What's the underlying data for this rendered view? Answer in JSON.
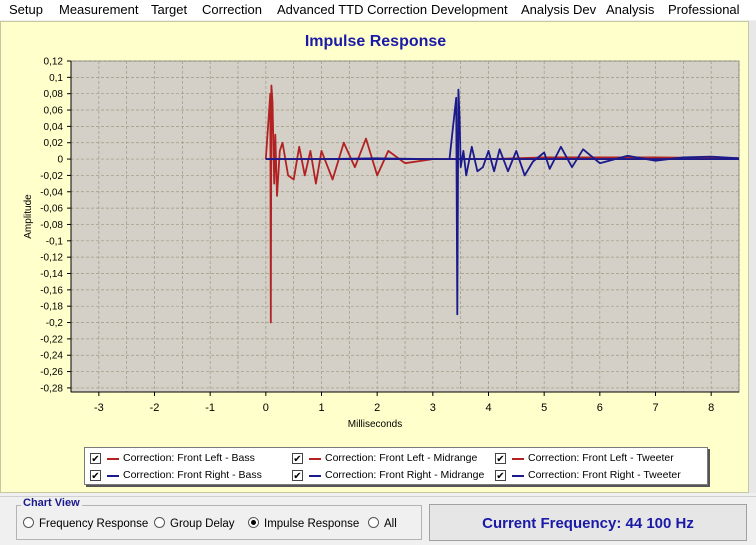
{
  "menu": [
    "Setup",
    "Measurement",
    "Target",
    "Correction",
    "Advanced TTD Correction",
    "Development",
    "Analysis Dev",
    "Analysis",
    "Professional"
  ],
  "chart_data": {
    "type": "line",
    "title": "Impulse Response",
    "xlabel": "Milliseconds",
    "ylabel": "Amplitude",
    "xlim": [
      -3.5,
      8.5
    ],
    "ylim": [
      -0.285,
      0.12
    ],
    "x_ticks": [
      -3,
      -2,
      -1,
      0,
      1,
      2,
      3,
      4,
      5,
      6,
      7,
      8
    ],
    "y_ticks": [
      "0,12",
      "0,1",
      "0,08",
      "0,06",
      "0,04",
      "0,02",
      "0",
      "-0,02",
      "-0,04",
      "-0,06",
      "-0,08",
      "-0,1",
      "-0,12",
      "-0,14",
      "-0,16",
      "-0,18",
      "-0,2",
      "-0,22",
      "-0,24",
      "-0,26",
      "-0,28"
    ],
    "y_tick_values": [
      0.12,
      0.1,
      0.08,
      0.06,
      0.04,
      0.02,
      0,
      -0.02,
      -0.04,
      -0.06,
      -0.08,
      -0.1,
      -0.12,
      -0.14,
      -0.16,
      -0.18,
      -0.2,
      -0.22,
      -0.24,
      -0.26,
      -0.28
    ],
    "grid": true,
    "series": [
      {
        "name": "Correction: Front Left - Bass",
        "color": "#b22222",
        "x": [
          0.0,
          0.08,
          0.09,
          0.1,
          0.12,
          0.15,
          0.17,
          0.2,
          0.25,
          0.3,
          0.4,
          0.5,
          0.6,
          0.7,
          0.8,
          0.9,
          1.0,
          1.2,
          1.4,
          1.6,
          1.8,
          2.0,
          2.2,
          2.5,
          3.0,
          3.5,
          4.0,
          6.0,
          8.5
        ],
        "y": [
          0.0,
          0.08,
          -0.2,
          0.09,
          0.07,
          -0.03,
          0.03,
          -0.045,
          0.01,
          0.02,
          -0.02,
          -0.025,
          0.015,
          -0.02,
          0.01,
          -0.03,
          0.01,
          -0.025,
          0.02,
          -0.01,
          0.025,
          -0.02,
          0.01,
          -0.005,
          0.0,
          0.0,
          0.0,
          0.002,
          0.001
        ]
      },
      {
        "name": "Correction: Front Left - Midrange",
        "color": "#b22222",
        "x": [
          0.0,
          0.5,
          1.0,
          2.0,
          3.0,
          3.45,
          4.0,
          5.0,
          6.0,
          7.0,
          8.5
        ],
        "y": [
          0.0,
          0.0,
          0.0,
          0.0,
          0.0,
          0.0,
          0.0,
          0.002,
          0.002,
          0.002,
          0.001
        ]
      },
      {
        "name": "Correction: Front Left - Tweeter",
        "color": "#b22222",
        "x": [
          0.0,
          8.5
        ],
        "y": [
          0.0,
          0.0
        ]
      },
      {
        "name": "Correction: Front Right - Bass",
        "color": "#1a1a8c",
        "x": [
          0.0,
          1.0,
          2.0,
          3.0,
          3.3,
          8.5
        ],
        "y": [
          0.0,
          0.0,
          0.001,
          0.0,
          0.0,
          0.0
        ]
      },
      {
        "name": "Correction: Front Right - Midrange",
        "color": "#1a1a8c",
        "x": [
          3.3,
          3.42,
          3.44,
          3.46,
          3.48,
          3.5,
          3.55,
          3.6,
          3.7,
          3.8,
          3.9,
          4.0,
          4.1,
          4.2,
          4.35,
          4.5,
          4.65,
          4.8,
          5.0,
          5.1,
          5.3,
          5.5,
          5.7,
          6.0,
          6.5,
          7.0,
          7.5,
          8.0,
          8.5
        ],
        "y": [
          0.0,
          0.075,
          -0.19,
          0.085,
          0.05,
          -0.01,
          0.01,
          -0.02,
          0.015,
          -0.015,
          -0.01,
          0.01,
          -0.015,
          0.012,
          -0.015,
          0.01,
          -0.02,
          -0.003,
          0.008,
          -0.012,
          0.015,
          -0.01,
          0.012,
          -0.005,
          0.004,
          -0.002,
          0.002,
          0.003,
          0.001
        ]
      },
      {
        "name": "Correction: Front Right - Tweeter",
        "color": "#1a1a8c",
        "x": [
          0.0,
          8.5
        ],
        "y": [
          0.0,
          0.0
        ]
      }
    ]
  },
  "legend": {
    "items": [
      {
        "label": "Correction: Front Left - Bass",
        "color": "#b22222",
        "checked": "✔"
      },
      {
        "label": "Correction: Front Left - Midrange",
        "color": "#b22222",
        "checked": "✔"
      },
      {
        "label": "Correction: Front Left - Tweeter",
        "color": "#b22222",
        "checked": "✔"
      },
      {
        "label": "Correction: Front Right - Bass",
        "color": "#1a1a8c",
        "checked": "✔"
      },
      {
        "label": "Correction: Front Right - Midrange",
        "color": "#1a1a8c",
        "checked": "✔"
      },
      {
        "label": "Correction: Front Right - Tweeter",
        "color": "#1a1a8c",
        "checked": "✔"
      }
    ]
  },
  "chart_view": {
    "title": "Chart View",
    "options": [
      "Frequency Response",
      "Group Delay",
      "Impulse Response",
      "All"
    ],
    "selected": "Impulse Response"
  },
  "status": {
    "current_frequency": "Current Frequency: 44 100 Hz"
  },
  "colors": {
    "plot_bg": "#d4d0c8",
    "chart_bg": "#ffffcc",
    "title": "#1a1aa6",
    "left": "#b22222",
    "right": "#1a1a8c"
  }
}
